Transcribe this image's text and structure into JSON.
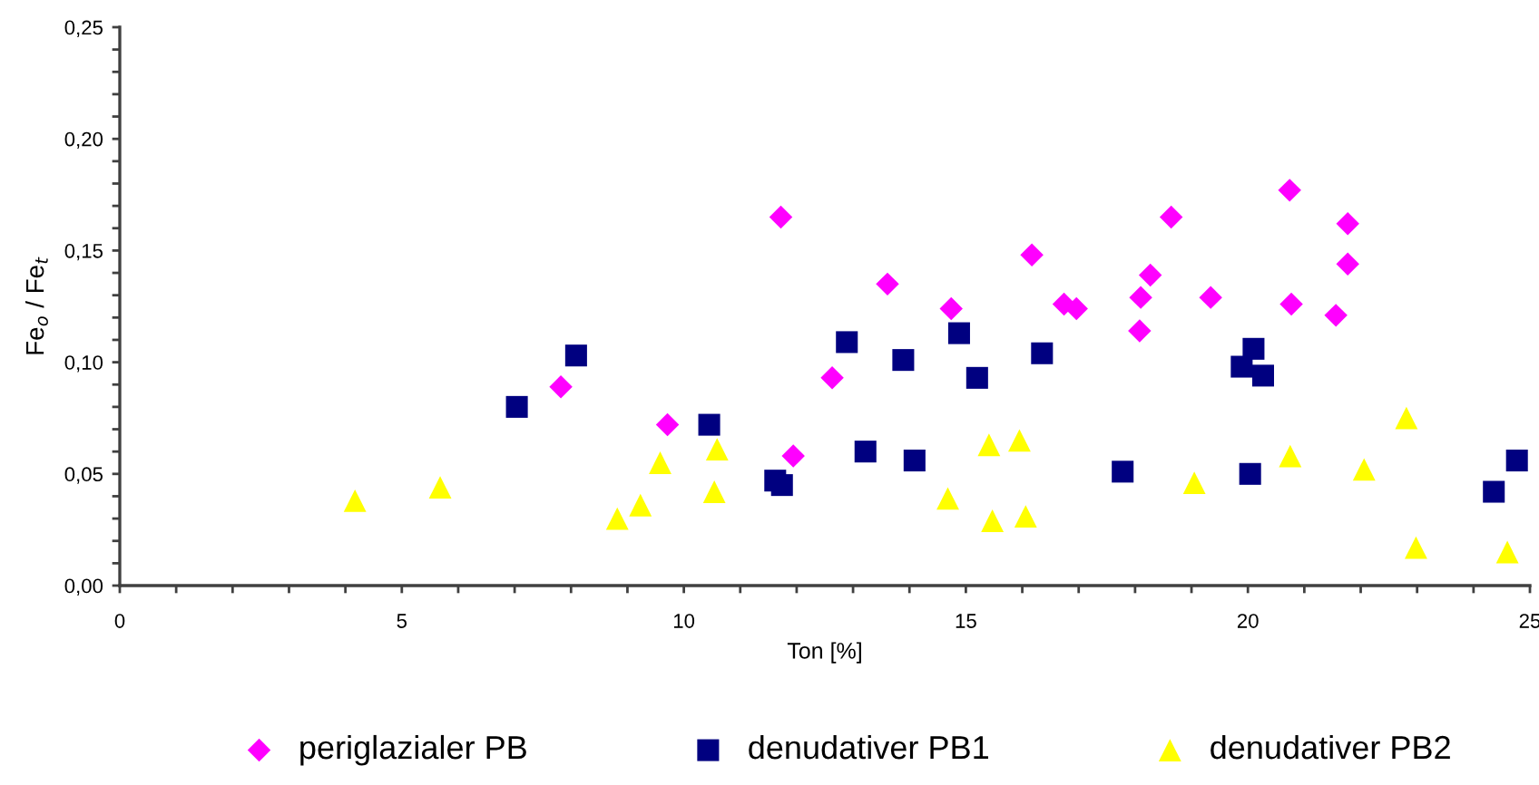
{
  "chart_data": {
    "type": "scatter",
    "xlabel": "Ton [%]",
    "ylabel": "Fe$_{o}$ / Fe$_{t}$",
    "legend": "bottom",
    "grid": false,
    "xlim": [
      0,
      25
    ],
    "ylim": [
      0,
      0.25
    ],
    "xticks": [
      0,
      {
        "value": 1,
        "label": null
      },
      {
        "value": 2,
        "label": null
      },
      {
        "value": 3,
        "label": null
      },
      {
        "value": 4,
        "label": null
      },
      5,
      {
        "value": 6,
        "label": null
      },
      {
        "value": 7,
        "label": null
      },
      {
        "value": 8,
        "label": null
      },
      {
        "value": 9,
        "label": null
      },
      10,
      {
        "value": 11,
        "label": null
      },
      {
        "value": 12,
        "label": null
      },
      {
        "value": 13,
        "label": null
      },
      {
        "value": 14,
        "label": null
      },
      15,
      {
        "value": 16,
        "label": null
      },
      {
        "value": 17,
        "label": null
      },
      {
        "value": 18,
        "label": null
      },
      {
        "value": 19,
        "label": null
      },
      20,
      {
        "value": 21,
        "label": null
      },
      {
        "value": 22,
        "label": null
      },
      {
        "value": 23,
        "label": null
      },
      {
        "value": 24,
        "label": null
      },
      25
    ],
    "yticks": [
      {
        "value": 0,
        "label": "0,00"
      },
      {
        "value": 0.01,
        "label": null
      },
      {
        "value": 0.02,
        "label": null
      },
      {
        "value": 0.03,
        "label": null
      },
      {
        "value": 0.04,
        "label": null
      },
      {
        "value": 0.05,
        "label": "0,05"
      },
      {
        "value": 0.06,
        "label": null
      },
      {
        "value": 0.07,
        "label": null
      },
      {
        "value": 0.08,
        "label": null
      },
      {
        "value": 0.09,
        "label": null
      },
      {
        "value": 0.1,
        "label": "0,10"
      },
      {
        "value": 0.11,
        "label": null
      },
      {
        "value": 0.12,
        "label": null
      },
      {
        "value": 0.13,
        "label": null
      },
      {
        "value": 0.14,
        "label": null
      },
      {
        "value": 0.15,
        "label": "0,15"
      },
      {
        "value": 0.16,
        "label": null
      },
      {
        "value": 0.17,
        "label": null
      },
      {
        "value": 0.18,
        "label": null
      },
      {
        "value": 0.19,
        "label": null
      },
      {
        "value": 0.2,
        "label": "0,20"
      },
      {
        "value": 0.21,
        "label": null
      },
      {
        "value": 0.22,
        "label": null
      },
      {
        "value": 0.23,
        "label": null
      },
      {
        "value": 0.24,
        "label": null
      },
      {
        "value": 0.25,
        "label": "0,25"
      }
    ],
    "series": [
      {
        "name": "periglazialer PB",
        "color": "#ff00ff",
        "marker": "diamond",
        "x": [
          7.82,
          9.71,
          11.72,
          11.94,
          12.63,
          13.61,
          14.74,
          16.17,
          16.74,
          16.96,
          18.08,
          18.1,
          18.27,
          18.64,
          19.34,
          20.74,
          20.77,
          21.56,
          21.77,
          21.77
        ],
        "values": [
          0.089,
          0.072,
          0.165,
          0.058,
          0.093,
          0.135,
          0.124,
          0.148,
          0.126,
          0.124,
          0.114,
          0.129,
          0.139,
          0.165,
          0.129,
          0.177,
          0.126,
          0.121,
          0.162,
          0.144
        ]
      },
      {
        "name": "denudativer PB1",
        "color": "#000080",
        "marker": "square",
        "x": [
          7.04,
          8.09,
          10.45,
          11.62,
          11.74,
          12.89,
          13.22,
          13.89,
          14.09,
          14.88,
          15.2,
          16.35,
          17.78,
          19.89,
          20.1,
          20.27,
          20.04,
          24.36,
          24.77
        ],
        "values": [
          0.08,
          0.103,
          0.072,
          0.047,
          0.045,
          0.109,
          0.06,
          0.101,
          0.056,
          0.113,
          0.093,
          0.104,
          0.051,
          0.098,
          0.106,
          0.094,
          0.05,
          0.042,
          0.056
        ]
      },
      {
        "name": "denudativer PB2",
        "color": "#ffff00",
        "marker": "triangle",
        "x": [
          4.17,
          5.68,
          8.82,
          9.23,
          9.58,
          10.54,
          10.59,
          14.68,
          15.41,
          15.47,
          15.95,
          16.06,
          19.05,
          20.75,
          22.06,
          22.81,
          22.98,
          24.6
        ],
        "values": [
          0.038,
          0.044,
          0.03,
          0.036,
          0.055,
          0.042,
          0.061,
          0.039,
          0.063,
          0.029,
          0.065,
          0.031,
          0.046,
          0.058,
          0.052,
          0.075,
          0.017,
          0.015
        ]
      }
    ]
  }
}
